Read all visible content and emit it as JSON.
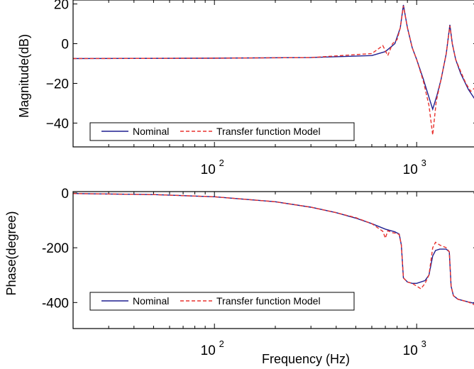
{
  "chart_data": [
    {
      "type": "line",
      "xlabel": "",
      "ylabel": "Magnitude(dB)",
      "xscale": "log",
      "xlim": [
        20,
        2000
      ],
      "ylim": [
        -52,
        22
      ],
      "yticks": [
        20,
        0,
        -20,
        -40
      ],
      "yticklabels": [
        "20",
        "0",
        "−20",
        "−40"
      ],
      "xticks": [
        100,
        1000
      ],
      "xticklabels_base": [
        "10",
        "10"
      ],
      "xticklabels_exp": [
        "2",
        "3"
      ],
      "legend": {
        "placement": "bottom-left",
        "entries": [
          "Nominal",
          "Transfer function Model"
        ]
      },
      "series": [
        {
          "name": "Nominal",
          "color": "#1f1f8f",
          "style": "solid",
          "x": [
            20,
            100,
            300,
            600,
            700,
            780,
            830,
            860,
            900,
            950,
            1000,
            1080,
            1150,
            1200,
            1260,
            1320,
            1400,
            1460,
            1500,
            1560,
            1650,
            1800,
            2000
          ],
          "y": [
            -7.5,
            -7.3,
            -7.0,
            -6.0,
            -4.0,
            0.0,
            8.0,
            19.5,
            8.0,
            -2.0,
            -8.0,
            -18.0,
            -27.0,
            -33.0,
            -26.0,
            -18.0,
            -5.0,
            9.5,
            0.0,
            -8.0,
            -15.0,
            -23.0,
            -30.0
          ]
        },
        {
          "name": "Transfer function Model",
          "color": "#e8322e",
          "style": "dashed",
          "x": [
            20,
            100,
            300,
            600,
            680,
            720,
            760,
            800,
            830,
            860,
            900,
            950,
            1000,
            1080,
            1150,
            1200,
            1250,
            1320,
            1400,
            1460,
            1500,
            1560,
            1650,
            1750,
            1850,
            1950,
            2000
          ],
          "y": [
            -7.5,
            -7.3,
            -7.0,
            -5.0,
            -1.0,
            -6.0,
            0.0,
            2.0,
            8.0,
            19.0,
            8.0,
            -2.0,
            -8.0,
            -19.0,
            -31.0,
            -46.0,
            -29.0,
            -18.0,
            -5.0,
            9.0,
            0.0,
            -8.0,
            -14.0,
            -20.0,
            -24.0,
            -22.0,
            -10.0
          ]
        }
      ]
    },
    {
      "type": "line",
      "xlabel": "Frequency (Hz)",
      "ylabel": "Phase(degree)",
      "xscale": "log",
      "xlim": [
        20,
        2000
      ],
      "ylim": [
        -495,
        5
      ],
      "yticks": [
        0,
        -200,
        -400
      ],
      "yticklabels": [
        "0",
        "-200",
        "-400"
      ],
      "xticks": [
        100,
        1000
      ],
      "xticklabels_base": [
        "10",
        "10"
      ],
      "xticklabels_exp": [
        "2",
        "3"
      ],
      "legend": {
        "placement": "bottom-left",
        "entries": [
          "Nominal",
          "Transfer function Model"
        ]
      },
      "series": [
        {
          "name": "Nominal",
          "color": "#1f1f8f",
          "style": "solid",
          "x": [
            20,
            50,
            100,
            200,
            300,
            400,
            500,
            600,
            700,
            780,
            820,
            840,
            860,
            900,
            950,
            1000,
            1100,
            1150,
            1200,
            1240,
            1300,
            1400,
            1450,
            1480,
            1520,
            1600,
            1800,
            2000
          ],
          "y": [
            -2,
            -6,
            -14,
            -32,
            -52,
            -72,
            -92,
            -112,
            -132,
            -142,
            -150,
            -190,
            -310,
            -325,
            -330,
            -330,
            -320,
            -300,
            -230,
            -210,
            -205,
            -205,
            -215,
            -340,
            -375,
            -388,
            -398,
            -405
          ]
        },
        {
          "name": "Transfer function Model",
          "color": "#e8322e",
          "style": "dashed",
          "x": [
            20,
            50,
            100,
            200,
            300,
            400,
            500,
            600,
            680,
            700,
            720,
            760,
            800,
            820,
            840,
            860,
            900,
            950,
            1000,
            1050,
            1100,
            1150,
            1200,
            1240,
            1300,
            1400,
            1450,
            1480,
            1520,
            1600,
            1800,
            1950,
            2000
          ],
          "y": [
            -2,
            -6,
            -14,
            -32,
            -52,
            -72,
            -90,
            -112,
            -140,
            -165,
            -138,
            -145,
            -148,
            -152,
            -190,
            -310,
            -325,
            -330,
            -340,
            -350,
            -330,
            -300,
            -200,
            -180,
            -190,
            -200,
            -215,
            -340,
            -375,
            -388,
            -398,
            -410,
            -470
          ]
        }
      ]
    }
  ]
}
